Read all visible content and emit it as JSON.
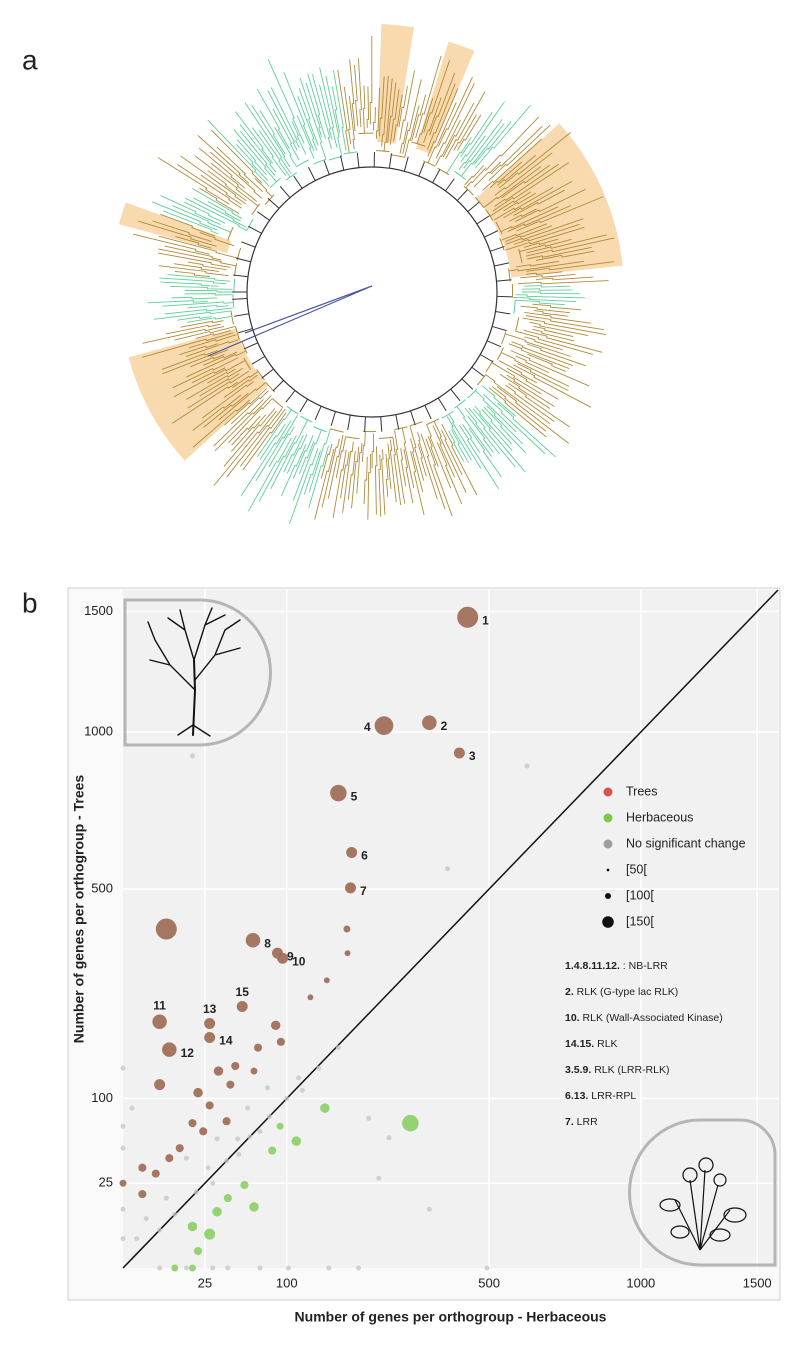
{
  "panel_a_label": "a",
  "chart_data": {
    "type": "scatter",
    "panel_label": "b",
    "xlabel": "Number of genes per orthogroup - Herbaceous",
    "ylabel": "Number of genes per orthogroup - Trees",
    "xscale": "sqrt",
    "yscale": "sqrt",
    "xlim": [
      0,
      1600
    ],
    "ylim": [
      0,
      1600
    ],
    "xticks": [
      25,
      100,
      500,
      1000,
      1500
    ],
    "yticks": [
      25,
      100,
      500,
      1000,
      1500
    ],
    "grid": true,
    "identity_line": true,
    "legend_position": "right",
    "series": [
      {
        "name": "Trees",
        "color": "#a0705a",
        "legend_color": "#d9534f",
        "x": [
          443,
          350,
          422,
          254,
          173,
          195,
          193,
          63,
          89,
          95,
          5,
          8,
          28,
          28,
          53,
          7,
          187,
          188,
          155,
          131,
          87,
          93,
          68,
          47,
          64,
          34,
          43,
          5,
          21,
          28,
          40,
          18,
          24,
          12,
          8,
          1.4,
          4,
          1.4,
          0
        ],
        "values": [
          1474,
          1035,
          923,
          1024,
          785,
          601,
          503,
          374,
          345,
          334,
          211,
          166,
          208,
          185,
          238,
          400,
          400,
          345,
          288,
          255,
          205,
          178,
          169,
          142,
          135,
          135,
          117,
          117,
          107,
          92,
          75,
          73,
          65,
          50,
          42,
          35,
          31,
          19,
          25
        ],
        "sizes": [
          150,
          120,
          100,
          140,
          130,
          100,
          100,
          120,
          100,
          100,
          120,
          120,
          100,
          100,
          100,
          150,
          70,
          60,
          60,
          60,
          90,
          80,
          80,
          80,
          70,
          90,
          80,
          100,
          90,
          80,
          80,
          80,
          80,
          80,
          80,
          80,
          80,
          80,
          70
        ],
        "labels": [
          "1",
          "2",
          "3",
          "4",
          "5",
          "6",
          "7",
          "8",
          "9",
          "10",
          "11",
          "12",
          "13",
          "14",
          "15",
          null,
          null,
          null,
          null,
          null,
          null,
          null,
          null,
          null,
          null,
          null,
          null,
          null,
          null,
          null,
          null,
          null,
          null,
          null,
          null,
          null,
          null,
          null,
          null
        ]
      },
      {
        "name": "Herbaceous",
        "color": "#8fd16a",
        "legend_color": "#7ac943",
        "x": [
          308,
          152,
          112,
          83,
          92,
          64,
          55,
          41,
          33,
          28,
          18,
          21,
          10,
          18
        ],
        "values": [
          73,
          89,
          56,
          48,
          70,
          13,
          24,
          17,
          11,
          4,
          6,
          1,
          0,
          0
        ],
        "sizes": [
          130,
          90,
          90,
          80,
          70,
          90,
          80,
          80,
          90,
          100,
          90,
          80,
          70,
          70
        ]
      },
      {
        "name": "No significant change",
        "color": "#c4c4c4",
        "legend_color": "#9e9e9e",
        "x": [
          18,
          609,
          393,
          15,
          33,
          58,
          78,
          115,
          143,
          173,
          49,
          27,
          7,
          2,
          0.7,
          0,
          0,
          15,
          41,
          102,
          158,
          207,
          494,
          350,
          244,
          264,
          0.3,
          0,
          225,
          20,
          40,
          60,
          80,
          100,
          10,
          5,
          30,
          50,
          70,
          120,
          0,
          0,
          5,
          30,
          70
        ],
        "values": [
          913,
          877,
          555,
          42,
          58,
          89,
          113,
          126,
          139,
          169,
          58,
          35,
          17,
          8.5,
          3,
          12,
          3,
          0,
          0,
          0,
          0,
          0,
          0,
          12,
          28,
          59,
          89,
          139,
          78,
          20,
          40,
          60,
          80,
          100,
          10,
          5,
          25,
          45,
          65,
          110,
          50,
          70,
          0,
          0,
          0
        ],
        "sizes": [
          50,
          50,
          50,
          50,
          50,
          50,
          50,
          50,
          50,
          50,
          50,
          50,
          50,
          50,
          50,
          50,
          50,
          50,
          50,
          50,
          50,
          50,
          50,
          50,
          50,
          50,
          50,
          50,
          50,
          50,
          50,
          50,
          50,
          50,
          50,
          50,
          50,
          50,
          50,
          50,
          50,
          50,
          50,
          50,
          50
        ]
      }
    ],
    "size_legend": [
      {
        "value": 50,
        "label": "[50["
      },
      {
        "value": 100,
        "label": "[100["
      },
      {
        "value": 150,
        "label": "[150["
      }
    ],
    "key": [
      {
        "ids": "1.4.8.11.12.",
        "text": " : NB-LRR"
      },
      {
        "ids": "2.",
        "text": " RLK (G-type lac RLK)"
      },
      {
        "ids": "10.",
        "text": " RLK (Wall-Associated Kinase)"
      },
      {
        "ids": "14.15.",
        "text": " RLK"
      },
      {
        "ids": "3.5.9.",
        "text": " RLK (LRR-RLK)"
      },
      {
        "ids": "6.13.",
        "text": " LRR-RPL"
      },
      {
        "ids": "7.",
        "text": " LRR"
      }
    ]
  }
}
